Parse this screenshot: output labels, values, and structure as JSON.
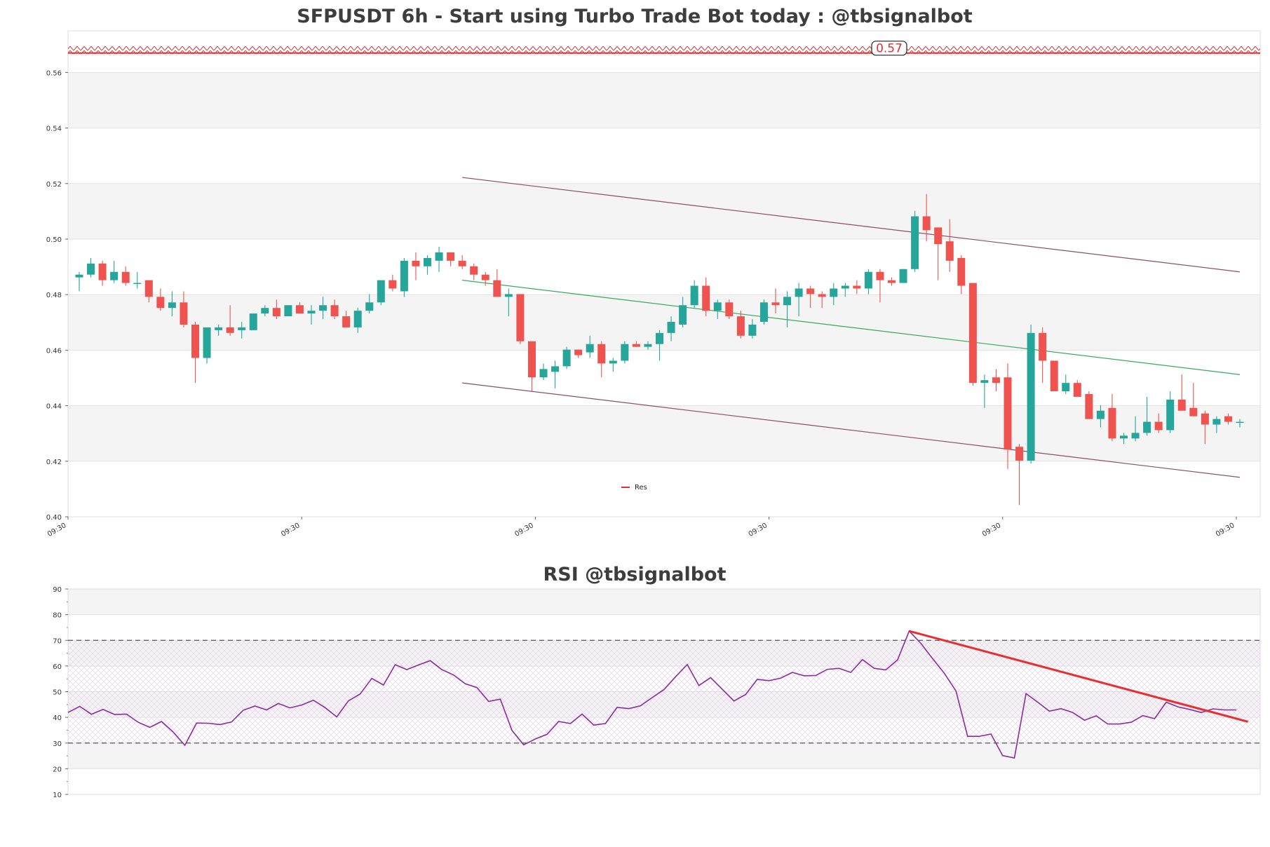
{
  "chart_data": [
    {
      "type": "candlestick",
      "title": "SFPUSDT 6h - Start using Turbo Trade Bot today : @tbsignalbot",
      "xlabel": "",
      "ylabel": "",
      "ylim": [
        0.4,
        0.575
      ],
      "y_ticks": [
        "0.40",
        "0.42",
        "0.44",
        "0.46",
        "0.48",
        "0.50",
        "0.52",
        "0.54",
        "0.56"
      ],
      "x_ticks": [
        "09:30",
        "09:30",
        "09:30",
        "09:30",
        "09:30",
        "09:30"
      ],
      "x_tick_index": [
        0,
        20,
        40,
        60,
        80,
        100
      ],
      "grid": true,
      "legend": {
        "placement": "lower-center",
        "entries": [
          {
            "name": "Res",
            "color": "#e03030"
          }
        ]
      },
      "resistance": {
        "value": 0.567,
        "label": "0.57",
        "color": "#e03030"
      },
      "candles": [
        [
          0.4862,
          0.4882,
          0.4812,
          0.4872
        ],
        [
          0.4872,
          0.4932,
          0.4862,
          0.4912
        ],
        [
          0.4912,
          0.4922,
          0.4832,
          0.4852
        ],
        [
          0.4852,
          0.4922,
          0.4842,
          0.4882
        ],
        [
          0.4882,
          0.4902,
          0.4832,
          0.4842
        ],
        [
          0.4842,
          0.4882,
          0.4822,
          0.4842
        ],
        [
          0.4852,
          0.4852,
          0.4772,
          0.4792
        ],
        [
          0.4792,
          0.4822,
          0.4742,
          0.4752
        ],
        [
          0.4752,
          0.4812,
          0.4722,
          0.4772
        ],
        [
          0.4772,
          0.4812,
          0.4682,
          0.4692
        ],
        [
          0.4692,
          0.4702,
          0.4482,
          0.4572
        ],
        [
          0.4572,
          0.4682,
          0.4552,
          0.4682
        ],
        [
          0.4672,
          0.4692,
          0.4652,
          0.4682
        ],
        [
          0.4682,
          0.4762,
          0.4652,
          0.4662
        ],
        [
          0.4672,
          0.4702,
          0.4642,
          0.4682
        ],
        [
          0.4672,
          0.4732,
          0.4672,
          0.4732
        ],
        [
          0.4732,
          0.4762,
          0.4722,
          0.4752
        ],
        [
          0.4752,
          0.4782,
          0.4712,
          0.4722
        ],
        [
          0.4722,
          0.4762,
          0.4722,
          0.4762
        ],
        [
          0.4762,
          0.4772,
          0.4732,
          0.4732
        ],
        [
          0.4732,
          0.4762,
          0.4692,
          0.4742
        ],
        [
          0.4742,
          0.4792,
          0.4712,
          0.4762
        ],
        [
          0.4762,
          0.4782,
          0.4712,
          0.4722
        ],
        [
          0.4722,
          0.4742,
          0.4682,
          0.4682
        ],
        [
          0.4682,
          0.4752,
          0.4662,
          0.4742
        ],
        [
          0.4742,
          0.4802,
          0.4732,
          0.4772
        ],
        [
          0.4772,
          0.4852,
          0.4762,
          0.4852
        ],
        [
          0.4852,
          0.4872,
          0.4812,
          0.4822
        ],
        [
          0.4812,
          0.4932,
          0.4792,
          0.4922
        ],
        [
          0.4922,
          0.4952,
          0.4852,
          0.4902
        ],
        [
          0.4902,
          0.4942,
          0.4872,
          0.4932
        ],
        [
          0.4922,
          0.4972,
          0.4882,
          0.4952
        ],
        [
          0.4952,
          0.4952,
          0.4902,
          0.4922
        ],
        [
          0.4922,
          0.4942,
          0.4892,
          0.4902
        ],
        [
          0.4902,
          0.4912,
          0.4852,
          0.4872
        ],
        [
          0.4872,
          0.4882,
          0.4832,
          0.4852
        ],
        [
          0.4852,
          0.4892,
          0.4792,
          0.4792
        ],
        [
          0.4792,
          0.4822,
          0.4722,
          0.4802
        ],
        [
          0.4802,
          0.4802,
          0.4622,
          0.4632
        ],
        [
          0.4632,
          0.4632,
          0.4452,
          0.4502
        ],
        [
          0.4502,
          0.4552,
          0.4492,
          0.4532
        ],
        [
          0.4522,
          0.4562,
          0.4462,
          0.4542
        ],
        [
          0.4542,
          0.4612,
          0.4532,
          0.4602
        ],
        [
          0.4602,
          0.4602,
          0.4572,
          0.4582
        ],
        [
          0.4592,
          0.4652,
          0.4572,
          0.4622
        ],
        [
          0.4622,
          0.4632,
          0.4502,
          0.4552
        ],
        [
          0.4552,
          0.4572,
          0.4522,
          0.4562
        ],
        [
          0.4562,
          0.4632,
          0.4552,
          0.4622
        ],
        [
          0.4622,
          0.4632,
          0.4612,
          0.4612
        ],
        [
          0.4612,
          0.4632,
          0.4602,
          0.4622
        ],
        [
          0.4622,
          0.4672,
          0.4562,
          0.4662
        ],
        [
          0.4662,
          0.4722,
          0.4632,
          0.4702
        ],
        [
          0.4692,
          0.4792,
          0.4682,
          0.4762
        ],
        [
          0.4762,
          0.4852,
          0.4752,
          0.4832
        ],
        [
          0.4832,
          0.4862,
          0.4722,
          0.4742
        ],
        [
          0.4742,
          0.4782,
          0.4712,
          0.4772
        ],
        [
          0.4772,
          0.4782,
          0.4712,
          0.4722
        ],
        [
          0.4722,
          0.4742,
          0.4642,
          0.4652
        ],
        [
          0.4652,
          0.4712,
          0.4642,
          0.4692
        ],
        [
          0.4702,
          0.4782,
          0.4692,
          0.4772
        ],
        [
          0.4772,
          0.4822,
          0.4732,
          0.4762
        ],
        [
          0.4762,
          0.4812,
          0.4682,
          0.4792
        ],
        [
          0.4792,
          0.4842,
          0.4722,
          0.4822
        ],
        [
          0.4822,
          0.4832,
          0.4752,
          0.4802
        ],
        [
          0.4802,
          0.4812,
          0.4752,
          0.4792
        ],
        [
          0.4792,
          0.4842,
          0.4762,
          0.4822
        ],
        [
          0.4822,
          0.4842,
          0.4792,
          0.4832
        ],
        [
          0.4832,
          0.4852,
          0.4802,
          0.4822
        ],
        [
          0.4822,
          0.4892,
          0.4802,
          0.4882
        ],
        [
          0.4882,
          0.4892,
          0.4772,
          0.4852
        ],
        [
          0.4852,
          0.4862,
          0.4832,
          0.4842
        ],
        [
          0.4842,
          0.4892,
          0.4842,
          0.4892
        ],
        [
          0.4892,
          0.5102,
          0.4882,
          0.5082
        ],
        [
          0.5082,
          0.5162,
          0.4992,
          0.5032
        ],
        [
          0.5042,
          0.5042,
          0.4852,
          0.4982
        ],
        [
          0.4992,
          0.5072,
          0.4882,
          0.4922
        ],
        [
          0.4932,
          0.4942,
          0.4802,
          0.4832
        ],
        [
          0.4842,
          0.4842,
          0.4472,
          0.4482
        ],
        [
          0.4482,
          0.4512,
          0.4392,
          0.4492
        ],
        [
          0.4502,
          0.4532,
          0.4452,
          0.4482
        ],
        [
          0.4502,
          0.4552,
          0.4172,
          0.4242
        ],
        [
          0.4252,
          0.4262,
          0.4042,
          0.4202
        ],
        [
          0.4202,
          0.4692,
          0.4192,
          0.4662
        ],
        [
          0.4662,
          0.4682,
          0.4482,
          0.4562
        ],
        [
          0.4562,
          0.4562,
          0.4452,
          0.4452
        ],
        [
          0.4452,
          0.4512,
          0.4442,
          0.4482
        ],
        [
          0.4482,
          0.4492,
          0.4432,
          0.4432
        ],
        [
          0.4442,
          0.4452,
          0.4352,
          0.4352
        ],
        [
          0.4352,
          0.4402,
          0.4322,
          0.4382
        ],
        [
          0.4392,
          0.4442,
          0.4272,
          0.4282
        ],
        [
          0.4282,
          0.4302,
          0.4262,
          0.4292
        ],
        [
          0.4282,
          0.4362,
          0.4272,
          0.4302
        ],
        [
          0.4302,
          0.4432,
          0.4292,
          0.4342
        ],
        [
          0.4342,
          0.4372,
          0.4302,
          0.4312
        ],
        [
          0.4312,
          0.4452,
          0.4302,
          0.4422
        ],
        [
          0.4422,
          0.4512,
          0.4382,
          0.4382
        ],
        [
          0.4392,
          0.4482,
          0.4362,
          0.4362
        ],
        [
          0.4372,
          0.4382,
          0.4262,
          0.4332
        ],
        [
          0.4332,
          0.4362,
          0.4302,
          0.4352
        ],
        [
          0.4362,
          0.4372,
          0.4332,
          0.4342
        ],
        [
          0.4342,
          0.4352,
          0.4322,
          0.4342
        ]
      ],
      "channel_lines": [
        {
          "name": "upper",
          "color": "#8e4c6a",
          "x": [
            33,
            100
          ],
          "y": [
            0.5222,
            0.4882
          ]
        },
        {
          "name": "middle",
          "color": "#3aa860",
          "x": [
            33,
            100
          ],
          "y": [
            0.4852,
            0.4512
          ]
        },
        {
          "name": "lower",
          "color": "#8e4c6a",
          "x": [
            33,
            100
          ],
          "y": [
            0.4482,
            0.4142
          ]
        }
      ],
      "colors": {
        "up": "#26a69a",
        "down": "#ef5350"
      }
    },
    {
      "type": "line",
      "title": "RSI @tbsignalbot",
      "xlabel": "",
      "ylabel": "",
      "ylim": [
        10,
        90
      ],
      "y_ticks": [
        "10",
        "20",
        "30",
        "40",
        "50",
        "60",
        "70",
        "80",
        "90"
      ],
      "grid": true,
      "levels": [
        30,
        70
      ],
      "series": [
        {
          "color": "#8b2c9e",
          "values": [
            41.9,
            44.3,
            41.2,
            43.1,
            41.1,
            41.3,
            38.1,
            36.1,
            38.4,
            34.3,
            29.1,
            37.8,
            37.7,
            37.2,
            38.2,
            42.8,
            44.4,
            42.9,
            45.4,
            43.7,
            44.8,
            46.7,
            43.8,
            40.2,
            46.4,
            49.1,
            55.2,
            52.6,
            60.5,
            58.6,
            60.4,
            62.1,
            58.6,
            56.5,
            53.1,
            51.6,
            46.2,
            47.1,
            34.9,
            29.3,
            31.6,
            33.4,
            38.4,
            37.6,
            41.3,
            37.0,
            37.6,
            43.9,
            43.4,
            44.5,
            47.7,
            50.8,
            55.8,
            60.6,
            52.4,
            55.5,
            50.9,
            46.4,
            48.9,
            54.8,
            54.3,
            55.3,
            57.5,
            56.2,
            56.3,
            58.7,
            59.1,
            57.5,
            62.5,
            59.1,
            58.5,
            62.4,
            73.6,
            68.8,
            62.9,
            57.2,
            50.3,
            32.6,
            32.6,
            33.5,
            25.1,
            24.2,
            49.3,
            45.9,
            42.4,
            43.4,
            41.9,
            38.9,
            40.6,
            37.4,
            37.4,
            38.1,
            40.7,
            39.5,
            45.9,
            44.1,
            43.1,
            41.9,
            43.3,
            42.9,
            42.9
          ]
        }
      ],
      "trend_line": {
        "color": "#e82f2f",
        "x": [
          72,
          101
        ],
        "y": [
          73.6,
          38.3
        ]
      }
    }
  ]
}
